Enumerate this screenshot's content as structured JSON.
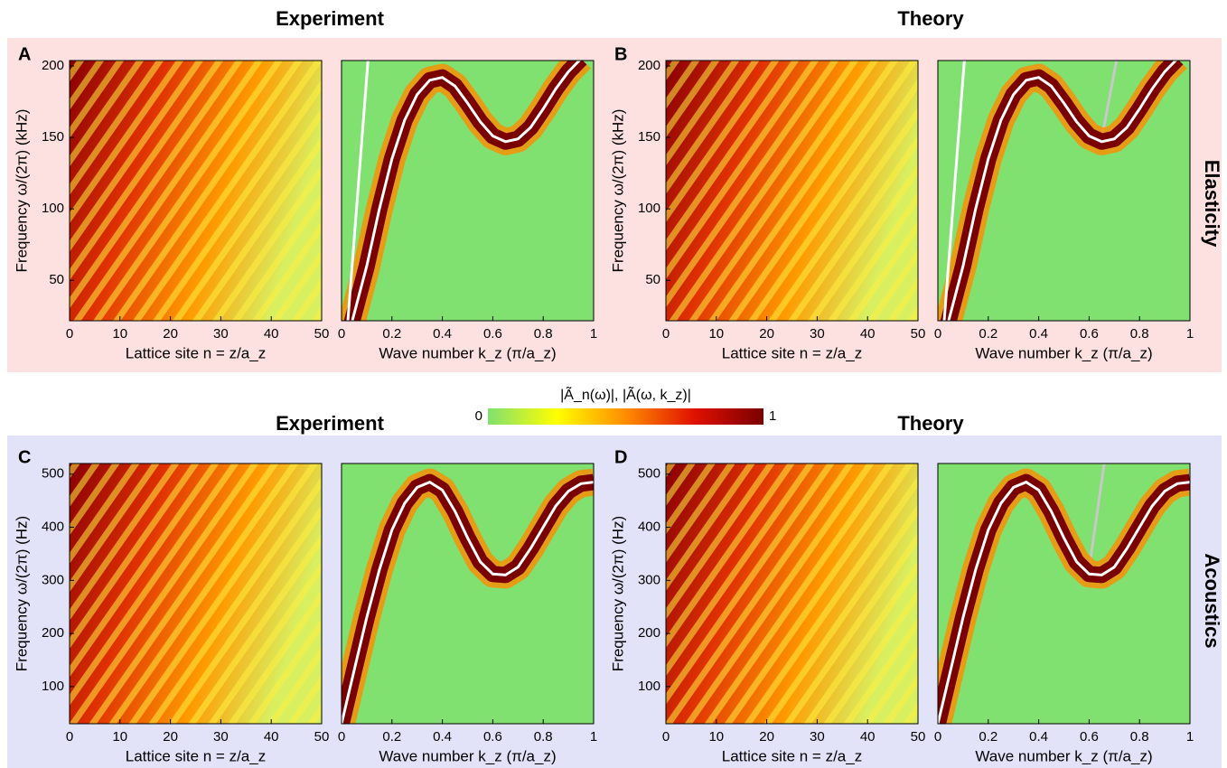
{
  "rows": [
    {
      "label": "Elasticity",
      "titles": [
        "Experiment",
        "Theory"
      ]
    },
    {
      "label": "Acoustics",
      "titles": [
        "Experiment",
        "Theory"
      ]
    }
  ],
  "colorbar": {
    "label": "|Ã_n(ω)|, |Ã(ω, k_z)|",
    "lim": [
      0,
      1
    ],
    "ticks": [
      0,
      1
    ],
    "colors": [
      "#80e070",
      "#ffff00",
      "#ff8c00",
      "#e01000",
      "#7a0000"
    ]
  },
  "chart_data": [
    {
      "type": "heatmap",
      "panel": "A",
      "xlabel": "Lattice site n = z/a_z",
      "ylabel": "Frequency ω/(2π) (kHz)",
      "xlim": [
        0,
        50
      ],
      "ylim": [
        21.7,
        203.8
      ],
      "xticks": [
        0,
        10,
        20,
        30,
        40,
        50
      ],
      "yticks": [
        50,
        100,
        150,
        200
      ]
    },
    {
      "type": "line",
      "xlabel": "Wave number k_z (π/a_z)",
      "xlim": [
        0,
        1
      ],
      "ylim": [
        21.7,
        203.8
      ],
      "xticks": [
        0,
        0.2,
        0.4,
        0.6,
        0.8,
        1
      ],
      "series": [
        {
          "color": "#ffffff",
          "band": true,
          "x": [
            0.04,
            0.1,
            0.15,
            0.2,
            0.25,
            0.3,
            0.35,
            0.4,
            0.45,
            0.5,
            0.55,
            0.6,
            0.65,
            0.7,
            0.75,
            0.8,
            0.85,
            0.9,
            0.95
          ],
          "values": [
            20,
            60,
            100,
            135,
            162,
            180,
            190,
            192,
            186,
            174,
            161,
            151,
            147,
            149,
            157,
            170,
            184,
            196,
            205
          ]
        },
        {
          "color": "#ffffff",
          "x": [
            0.025,
            0.105
          ],
          "values": [
            21.7,
            203.8
          ]
        }
      ]
    },
    {
      "type": "heatmap",
      "panel": "B",
      "xlabel": "Lattice site n = z/a_z",
      "ylabel": "Frequency ω/(2π) (kHz)",
      "xlim": [
        0,
        50
      ],
      "ylim": [
        21.7,
        203.8
      ],
      "xticks": [
        0,
        10,
        20,
        30,
        40,
        50
      ],
      "yticks": [
        50,
        100,
        150,
        200
      ]
    },
    {
      "type": "line",
      "xlabel": "Wave number k_z (π/a_z)",
      "xlim": [
        0,
        1
      ],
      "ylim": [
        21.7,
        203.8
      ],
      "xticks": [
        0,
        0.2,
        0.4,
        0.6,
        0.8,
        1
      ],
      "series": [
        {
          "color": "#c8c8c8",
          "x": [
            0.03,
            0.1,
            0.15,
            0.2,
            0.25,
            0.3,
            0.35,
            0.4,
            0.45,
            0.5,
            0.55,
            0.6,
            0.65,
            0.71
          ],
          "values": [
            20,
            62,
            102,
            137,
            163,
            181,
            190,
            191,
            185,
            173,
            160,
            150,
            149,
            205
          ]
        },
        {
          "color": "#ffffff",
          "band": true,
          "x": [
            0.04,
            0.1,
            0.15,
            0.2,
            0.25,
            0.3,
            0.35,
            0.4,
            0.45,
            0.5,
            0.55,
            0.6,
            0.65,
            0.7,
            0.75,
            0.8,
            0.85,
            0.9,
            0.95
          ],
          "values": [
            20,
            60,
            100,
            135,
            162,
            180,
            190,
            192,
            186,
            174,
            161,
            151,
            147,
            149,
            157,
            170,
            184,
            196,
            205
          ]
        },
        {
          "color": "#ffffff",
          "x": [
            0.025,
            0.105
          ],
          "values": [
            21.7,
            203.8
          ]
        }
      ]
    },
    {
      "type": "heatmap",
      "panel": "C",
      "xlabel": "Lattice site n = z/a_z",
      "ylabel": "Frequency ω/(2π) (Hz)",
      "xlim": [
        0,
        50
      ],
      "ylim": [
        30,
        520
      ],
      "xticks": [
        0,
        10,
        20,
        30,
        40,
        50
      ],
      "yticks": [
        100,
        200,
        300,
        400,
        500
      ]
    },
    {
      "type": "line",
      "xlabel": "Wave number k_z (π/a_z)",
      "xlim": [
        0,
        1
      ],
      "ylim": [
        30,
        520
      ],
      "xticks": [
        0,
        0.2,
        0.4,
        0.6,
        0.8,
        1
      ],
      "series": [
        {
          "color": "#ffffff",
          "band": true,
          "x": [
            0,
            0.05,
            0.1,
            0.15,
            0.2,
            0.25,
            0.3,
            0.35,
            0.4,
            0.45,
            0.5,
            0.55,
            0.6,
            0.65,
            0.7,
            0.75,
            0.8,
            0.85,
            0.9,
            0.95,
            1
          ],
          "values": [
            30,
            130,
            230,
            320,
            395,
            445,
            475,
            485,
            470,
            430,
            380,
            335,
            312,
            310,
            325,
            360,
            400,
            440,
            468,
            482,
            485
          ]
        }
      ]
    },
    {
      "type": "heatmap",
      "panel": "D",
      "xlabel": "Lattice site n = z/a_z",
      "ylabel": "Frequency ω/(2π) (Hz)",
      "xlim": [
        0,
        50
      ],
      "ylim": [
        30,
        520
      ],
      "xticks": [
        0,
        10,
        20,
        30,
        40,
        50
      ],
      "yticks": [
        100,
        200,
        300,
        400,
        500
      ]
    },
    {
      "type": "line",
      "xlabel": "Wave number k_z (π/a_z)",
      "xlim": [
        0,
        1
      ],
      "ylim": [
        30,
        520
      ],
      "xticks": [
        0,
        0.2,
        0.4,
        0.6,
        0.8,
        1
      ],
      "series": [
        {
          "color": "#c8c8c8",
          "x": [
            0,
            0.05,
            0.1,
            0.15,
            0.2,
            0.25,
            0.3,
            0.35,
            0.4,
            0.45,
            0.5,
            0.55,
            0.6,
            0.66
          ],
          "values": [
            30,
            132,
            232,
            322,
            396,
            446,
            474,
            482,
            466,
            426,
            378,
            336,
            322,
            520
          ]
        },
        {
          "color": "#ffffff",
          "band": true,
          "x": [
            0,
            0.05,
            0.1,
            0.15,
            0.2,
            0.25,
            0.3,
            0.35,
            0.4,
            0.45,
            0.5,
            0.55,
            0.6,
            0.65,
            0.7,
            0.75,
            0.8,
            0.85,
            0.9,
            0.95,
            1
          ],
          "values": [
            30,
            130,
            230,
            320,
            395,
            445,
            475,
            485,
            470,
            430,
            380,
            335,
            312,
            310,
            325,
            360,
            400,
            440,
            468,
            482,
            485
          ]
        }
      ]
    }
  ]
}
